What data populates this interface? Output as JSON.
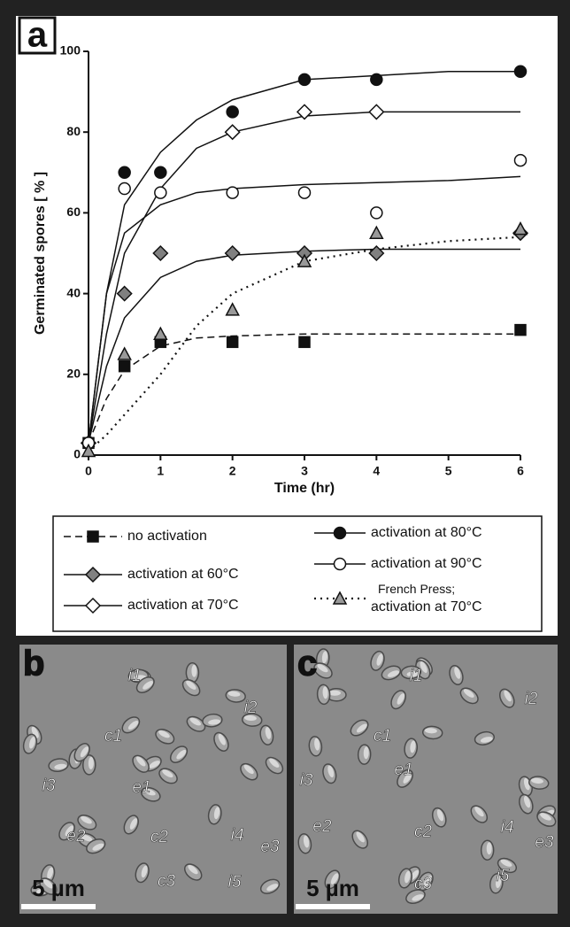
{
  "chart_data": {
    "type": "line",
    "panel_label": "a",
    "x_label": "Time (hr)",
    "y_label": "Germinated spores  [ % ]",
    "xlim": [
      0,
      6
    ],
    "ylim": [
      0,
      100
    ],
    "xticks": [
      0,
      1,
      2,
      3,
      4,
      5,
      6
    ],
    "yticks": [
      0,
      20,
      40,
      60,
      80,
      100
    ],
    "fit_x": [
      0,
      0.25,
      0.5,
      1,
      1.5,
      2,
      3,
      4,
      5,
      6
    ],
    "series": [
      {
        "name": "no activation",
        "marker": "square",
        "color": "#111111",
        "fill": "#111111",
        "dash": "8 5",
        "x": [
          0,
          0.5,
          1,
          2,
          3,
          6
        ],
        "values": [
          3,
          22,
          28,
          28,
          28,
          31
        ],
        "fit_values": [
          3,
          14,
          21,
          27,
          29,
          29.5,
          30,
          30,
          30,
          30
        ]
      },
      {
        "name": "activation at 60°C",
        "marker": "diamond",
        "color": "#111111",
        "fill": "#808080",
        "dash": "",
        "x": [
          0,
          0.5,
          1,
          2,
          3,
          4,
          6
        ],
        "values": [
          3,
          40,
          50,
          50,
          50,
          50,
          55
        ],
        "fit_values": [
          3,
          22,
          34,
          44,
          48,
          49.5,
          50.5,
          51,
          51,
          51
        ]
      },
      {
        "name": "activation at 70°C",
        "marker": "diamond",
        "color": "#111111",
        "fill": "#ffffff",
        "dash": "",
        "x": [
          0,
          2,
          3,
          4
        ],
        "values": [
          3,
          80,
          85,
          85
        ],
        "fit_values": [
          3,
          30,
          50,
          66,
          76,
          80,
          84,
          85,
          85,
          85
        ]
      },
      {
        "name": "activation at 80°C",
        "marker": "circle",
        "color": "#111111",
        "fill": "#111111",
        "dash": "",
        "x": [
          0,
          0.5,
          1,
          2,
          3,
          4,
          6
        ],
        "values": [
          3,
          70,
          70,
          85,
          93,
          93,
          95
        ],
        "fit_values": [
          3,
          40,
          62,
          75,
          83,
          88,
          93,
          94,
          95,
          95
        ]
      },
      {
        "name": "activation at 90°C",
        "marker": "circle",
        "color": "#111111",
        "fill": "#ffffff",
        "dash": "",
        "x": [
          0,
          0.5,
          1,
          2,
          3,
          4,
          6
        ],
        "values": [
          3,
          66,
          65,
          65,
          65,
          60,
          73
        ],
        "fit_values": [
          3,
          40,
          55,
          62,
          65,
          66,
          67,
          67.5,
          68,
          69
        ]
      },
      {
        "name": "French Press; activation at 70°C",
        "marker": "triangle",
        "color": "#111111",
        "fill": "#999999",
        "dash": "2 5",
        "x": [
          0,
          0.5,
          1,
          2,
          3,
          4,
          6
        ],
        "values": [
          1,
          25,
          30,
          36,
          48,
          55,
          56
        ],
        "fit_values": [
          1,
          5,
          10,
          20,
          32,
          40,
          48,
          51,
          53,
          54
        ]
      }
    ]
  },
  "panels": [
    {
      "label": "b",
      "scale_bar": "5 µm",
      "annotations": [
        "i1",
        "i2",
        "c1",
        "i3",
        "e1",
        "e2",
        "c2",
        "i4",
        "e3",
        "c3",
        "i5"
      ]
    },
    {
      "label": "c",
      "scale_bar": "5 µm",
      "annotations": [
        "i1",
        "i2",
        "c1",
        "i3",
        "e1",
        "e2",
        "c2",
        "i4",
        "e3",
        "c3",
        "i5"
      ]
    }
  ]
}
